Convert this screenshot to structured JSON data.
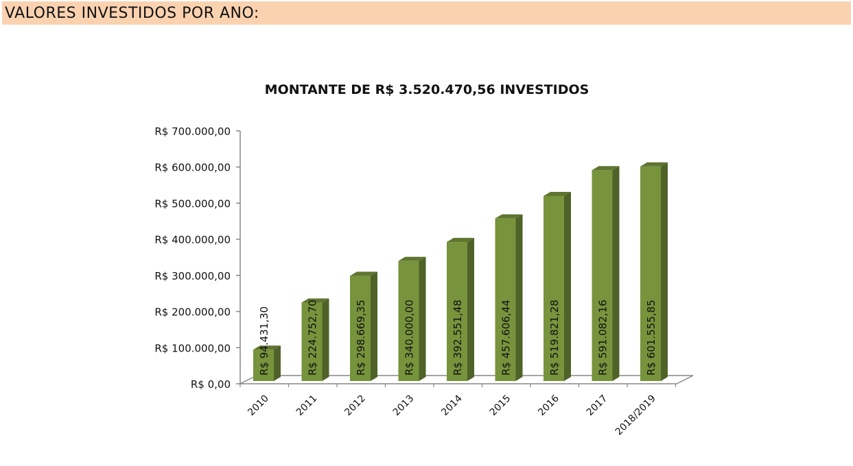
{
  "header": {
    "title": "VALORES INVESTIDOS POR ANO:"
  },
  "colors": {
    "header_band": "#fbd2b0",
    "bar_front": "#77933c",
    "bar_side": "#4f6228",
    "bar_top": "#5f7530",
    "axis": "#868686"
  },
  "chart_data": {
    "type": "bar",
    "title": "MONTANTE DE R$ 3.520.470,56 INVESTIDOS",
    "xlabel": "",
    "ylabel": "",
    "ylim": [
      0,
      700000
    ],
    "yticks": [
      0,
      100000,
      200000,
      300000,
      400000,
      500000,
      600000,
      700000
    ],
    "ytick_labels": [
      "R$ 0,00",
      "R$ 100.000,00",
      "R$ 200.000,00",
      "R$ 300.000,00",
      "R$ 400.000,00",
      "R$ 500.000,00",
      "R$ 600.000,00",
      "R$ 700.000,00"
    ],
    "categories": [
      "2010",
      "2011",
      "2012",
      "2013",
      "2014",
      "2015",
      "2016",
      "2017",
      "2018/2019"
    ],
    "values": [
      94431.3,
      224752.7,
      298669.35,
      340000.0,
      392551.48,
      457606.44,
      519821.28,
      591082.16,
      601555.85
    ],
    "data_labels": [
      "R$ 94.431,30",
      "R$ 224.752,70",
      "R$ 298.669,35",
      "R$ 340.000,00",
      "R$ 392.551,48",
      "R$ 457.606,44",
      "R$ 519.821,28",
      "R$ 591.082,16",
      "R$ 601.555,85"
    ],
    "grid": false,
    "legend": "none",
    "style": "3d-column"
  }
}
